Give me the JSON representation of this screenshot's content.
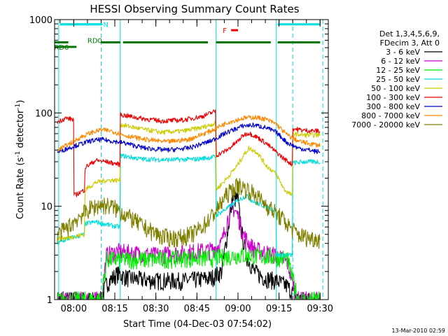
{
  "chart_data": {
    "type": "line",
    "title": "HESSI Observing Summary Count Rates",
    "xlabel": "Start Time (04-Dec-03 07:54:02)",
    "ylabel": "Count Rate (s⁻¹ detector⁻¹)",
    "ylabel_parts": [
      "Count Rate (s",
      "-1",
      " detector",
      "-1",
      ")"
    ],
    "xlim_minutes": [
      -7.0,
      93.0
    ],
    "ylim": [
      1,
      1000
    ],
    "yscale": "log",
    "x_ticks": [
      {
        "label": "08:00",
        "minutes": 0
      },
      {
        "label": "08:15",
        "minutes": 15
      },
      {
        "label": "08:30",
        "minutes": 30
      },
      {
        "label": "08:45",
        "minutes": 45
      },
      {
        "label": "09:00",
        "minutes": 60
      },
      {
        "label": "09:15",
        "minutes": 75
      },
      {
        "label": "09:30",
        "minutes": 90
      }
    ],
    "y_ticks": [
      {
        "label": "1",
        "value": 1
      },
      {
        "label": "10",
        "value": 10
      },
      {
        "label": "100",
        "value": 100
      },
      {
        "label": "1000",
        "value": 1000
      }
    ],
    "legend_header": [
      "Det 1,3,4,5,6,9,",
      "FDecim 3, Att 0"
    ],
    "legend_placement": "right",
    "series": [
      {
        "name": "3 - 6 keV",
        "color": "#000000",
        "x": [
          -6,
          10,
          12,
          16,
          20,
          30,
          40,
          50,
          54,
          57,
          58,
          60,
          61,
          63,
          66,
          70,
          74,
          78,
          82,
          86,
          90
        ],
        "y": [
          1.0,
          1.0,
          1.5,
          1.9,
          1.7,
          1.6,
          1.6,
          1.7,
          2.0,
          7.5,
          12.0,
          12.0,
          6.0,
          3.0,
          2.0,
          1.7,
          1.6,
          1.4,
          1.0,
          1.0,
          1.0
        ]
      },
      {
        "name": "6 - 12 keV",
        "color": "#cc00cc",
        "x": [
          -6,
          10,
          12,
          16,
          20,
          30,
          40,
          50,
          54,
          56,
          58,
          60,
          62,
          64,
          66,
          70,
          74,
          78,
          82,
          86,
          90
        ],
        "y": [
          1.0,
          1.0,
          3.0,
          3.3,
          3.2,
          3.0,
          3.2,
          3.4,
          4.0,
          7.0,
          10.0,
          8.0,
          5.0,
          4.0,
          3.5,
          3.2,
          3.0,
          2.5,
          1.0,
          1.0,
          1.0
        ]
      },
      {
        "name": "12 - 25 keV",
        "color": "#00ee00",
        "x": [
          -6,
          10,
          12,
          20,
          30,
          40,
          50,
          60,
          70,
          78,
          82,
          86,
          90
        ],
        "y": [
          1.0,
          1.0,
          2.7,
          2.7,
          2.7,
          2.8,
          2.8,
          3.0,
          2.9,
          2.8,
          1.0,
          1.0,
          1.0
        ]
      },
      {
        "name": "25 - 50 keV",
        "color": "#00dddd",
        "x": [
          -6,
          -2,
          4,
          4.1,
          8,
          14,
          16.9,
          17,
          25,
          35,
          45,
          51.9,
          52,
          56,
          60,
          63,
          66,
          70,
          73.9,
          74,
          78,
          79.9,
          80,
          84,
          90
        ],
        "y": [
          4.0,
          4.5,
          5.0,
          6.5,
          6.8,
          6.2,
          6.0,
          35.0,
          32.0,
          31.5,
          32.0,
          34.0,
          8.0,
          9.5,
          11.5,
          13.0,
          11.0,
          10.0,
          9.0,
          3.0,
          3.0,
          3.0,
          29.0,
          30.0,
          30.0
        ]
      },
      {
        "name": "50 - 100 keV",
        "color": "#cccc00",
        "x": [
          -6,
          -2,
          4,
          4.1,
          8,
          12,
          16.9,
          17,
          24,
          32,
          40,
          47,
          51.9,
          52,
          56,
          60,
          62,
          64,
          67,
          70,
          74,
          77,
          79.9,
          80,
          84,
          90
        ],
        "y": [
          4.5,
          4.6,
          5.0,
          15.0,
          18.0,
          19.0,
          19.0,
          75.0,
          68.0,
          62.0,
          64.0,
          70.0,
          78.0,
          15.0,
          20.0,
          28.0,
          35.0,
          42.0,
          38.0,
          28.0,
          22.0,
          15.0,
          13.0,
          60.0,
          58.0,
          58.0
        ]
      },
      {
        "name": "100 - 300 keV",
        "color": "#ee0000",
        "x": [
          -6,
          -3,
          0,
          0.1,
          4,
          4.1,
          8,
          12,
          16.9,
          17,
          24,
          32,
          40,
          47,
          51.9,
          52,
          56,
          60,
          62,
          64,
          67,
          70,
          74,
          77,
          79.9,
          80,
          84,
          90
        ],
        "y": [
          80.0,
          88.0,
          85.0,
          13.0,
          15.0,
          26.0,
          31.0,
          30.0,
          28.0,
          96.0,
          88.0,
          82.0,
          84.0,
          92.0,
          105.0,
          35.0,
          40.0,
          50.0,
          58.0,
          61.0,
          55.0,
          48.0,
          38.0,
          32.0,
          28.0,
          68.0,
          65.0,
          64.0
        ]
      },
      {
        "name": "300 - 800 keV",
        "color": "#0000cc",
        "x": [
          -6,
          -2,
          2,
          6,
          10,
          14,
          18,
          26,
          34,
          42,
          50,
          56,
          62,
          66,
          70,
          74,
          78,
          82,
          86,
          90
        ],
        "y": [
          38.0,
          42.0,
          46.0,
          50.0,
          52.0,
          50.0,
          48.0,
          42.0,
          40.0,
          42.0,
          50.0,
          62.0,
          73.0,
          74.0,
          70.0,
          62.0,
          48.0,
          42.0,
          40.0,
          38.0
        ]
      },
      {
        "name": "800 - 7000 keV",
        "color": "#ff8800",
        "x": [
          -6,
          -2,
          2,
          6,
          10,
          14,
          18,
          26,
          34,
          42,
          50,
          56,
          62,
          66,
          70,
          74,
          78,
          82,
          86,
          90
        ],
        "y": [
          40.0,
          46.0,
          54.0,
          61.0,
          66.0,
          64.0,
          58.0,
          52.0,
          49.0,
          52.0,
          64.0,
          79.0,
          88.0,
          90.0,
          86.0,
          76.0,
          58.0,
          50.0,
          47.0,
          45.0
        ]
      },
      {
        "name": "7000 - 20000 keV",
        "color": "#808000",
        "x": [
          -6,
          -2,
          2,
          6,
          10,
          14,
          18,
          24,
          28,
          32,
          36,
          40,
          44,
          48,
          52,
          56,
          60,
          64,
          68,
          72,
          76,
          79,
          82,
          86,
          90
        ],
        "y": [
          5.0,
          6.0,
          7.8,
          9.5,
          10.5,
          10.0,
          8.5,
          6.5,
          5.5,
          4.8,
          4.6,
          4.7,
          5.2,
          6.5,
          9.0,
          13.5,
          17.0,
          15.0,
          12.0,
          9.5,
          7.5,
          6.0,
          5.0,
          4.6,
          4.5
        ]
      }
    ],
    "annotations": [
      {
        "label": "N",
        "color": "#00dddd",
        "x_start": -5.0,
        "x_end": 10.0,
        "level": 890
      },
      {
        "label": "F",
        "color": "#ee0000",
        "x_start": 57.5,
        "x_end": 60.0,
        "level": 770
      }
    ],
    "status_bars": [
      {
        "color": "#00dddd",
        "segments": [
          [
            -5,
            10.5
          ],
          [
            74.5,
            90
          ]
        ],
        "level": 890
      },
      {
        "color": "#007700",
        "segments": [
          [
            -7,
            -2
          ],
          [
            10,
            17
          ],
          [
            18,
            49
          ],
          [
            52,
            72
          ],
          [
            74.5,
            90
          ]
        ],
        "level": 570
      },
      {
        "color": "#007700",
        "segments": [
          [
            -7,
            1
          ]
        ],
        "level": 510
      }
    ],
    "status_labels": [
      {
        "label": "RD0",
        "level": 590,
        "minutes": 5.0
      },
      {
        "label": "RD6",
        "level": 500,
        "minutes": -7.2
      }
    ],
    "vertical_markers": [
      {
        "minutes": -5.5,
        "style": "solid",
        "color": "#00dddd"
      },
      {
        "minutes": 10.0,
        "style": "dashed",
        "color": "#00dddd"
      },
      {
        "minutes": 17.0,
        "style": "solid",
        "color": "#00dddd"
      },
      {
        "minutes": 52.0,
        "style": "solid",
        "color": "#00dddd"
      },
      {
        "minutes": 74.0,
        "style": "solid",
        "color": "#00dddd"
      },
      {
        "minutes": 80.0,
        "style": "dashed",
        "color": "#00dddd"
      },
      {
        "minutes": 91.0,
        "style": "dashed",
        "color": "#00dddd"
      }
    ],
    "grid": false
  },
  "footer": {
    "timestamp": "13-Mar-2010 02:59"
  }
}
